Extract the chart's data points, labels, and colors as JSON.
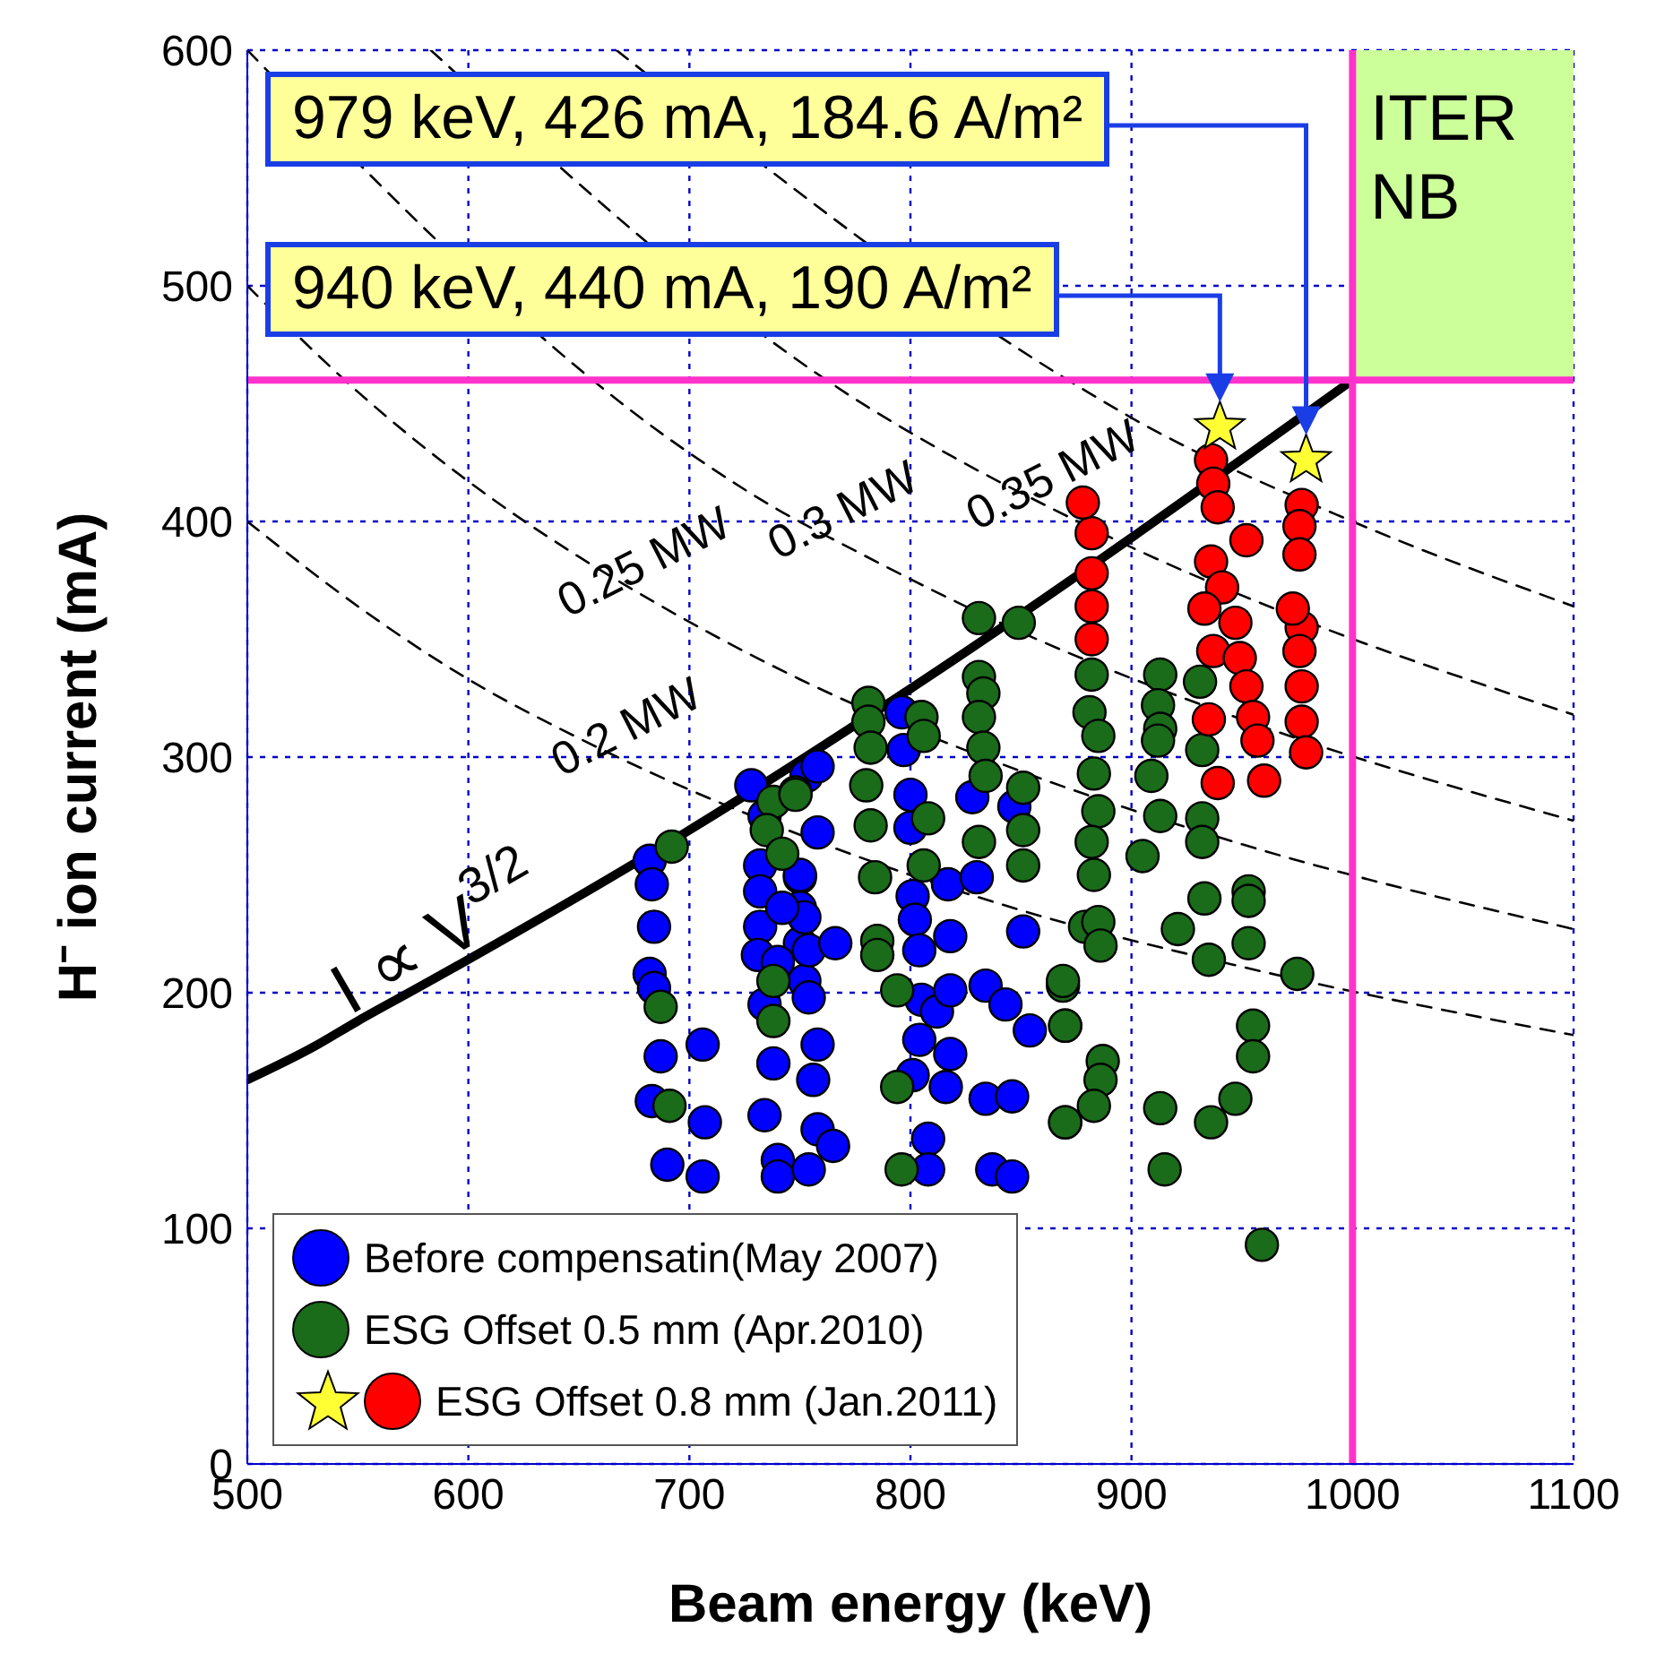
{
  "chart_data": {
    "type": "scatter",
    "xlabel": "Beam energy (keV)",
    "ylabel": "H⁻ ion current (mA)",
    "xlim": [
      500,
      1100
    ],
    "xticks": [
      500,
      600,
      700,
      800,
      900,
      1000,
      1100
    ],
    "ylim": [
      0,
      600
    ],
    "yticks": [
      0,
      100,
      200,
      300,
      400,
      500,
      600
    ],
    "grid": true,
    "legend": "bottom left",
    "series": [
      {
        "name": "Before compensatin(May 2007)",
        "color": "#0000ff",
        "marker": "circle",
        "x": [
          682,
          683,
          684,
          682,
          684,
          687,
          683,
          690,
          706,
          707,
          706,
          728,
          734,
          732,
          732,
          732,
          731,
          734,
          738,
          734,
          740,
          740,
          750,
          750,
          750,
          752,
          753,
          758,
          758,
          750,
          752,
          754,
          766,
          754,
          758,
          756,
          758,
          765,
          754,
          742,
          740,
          796,
          797,
          800,
          800,
          801,
          802,
          804,
          817,
          818,
          830,
          828,
          847,
          805,
          812,
          818,
          804,
          818,
          801,
          816,
          834,
          843,
          854,
          834,
          846,
          851,
          808,
          808,
          837,
          846
        ],
        "values": [
          256,
          246,
          228,
          208,
          202,
          173,
          154,
          127,
          178,
          145,
          122,
          288,
          275,
          254,
          243,
          228,
          216,
          195,
          170,
          148,
          129,
          122,
          249,
          236,
          221,
          205,
          292,
          296,
          268,
          250,
          232,
          218,
          221,
          198,
          178,
          163,
          142,
          135,
          125,
          236,
          213,
          319,
          303,
          284,
          270,
          241,
          231,
          218,
          246,
          224,
          249,
          283,
          279,
          197,
          192,
          201,
          180,
          174,
          165,
          160,
          203,
          195,
          184,
          155,
          156,
          226,
          138,
          125,
          125,
          122
        ]
      },
      {
        "name": "ESG Offset 0.5 mm (Apr.2010)",
        "color": "#1a6b1a",
        "marker": "circle",
        "x": [
          692,
          687,
          691,
          738,
          735,
          738,
          738,
          748,
          748,
          742,
          831,
          849,
          781,
          781,
          782,
          780,
          782,
          784,
          785,
          785,
          794,
          794,
          796,
          805,
          806,
          808,
          806,
          831,
          833,
          831,
          833,
          834,
          831,
          851,
          851,
          851,
          869,
          870,
          870,
          879,
          882,
          881,
          885,
          883,
          885,
          882,
          883,
          885,
          886,
          869,
          870,
          887,
          886,
          883,
          870,
          913,
          912,
          913,
          912,
          909,
          913,
          905,
          931,
          932,
          932,
          932,
          933,
          921,
          935,
          953,
          953,
          953,
          975,
          955,
          955,
          947,
          936,
          913,
          915,
          959
        ],
        "values": [
          262,
          194,
          152,
          281,
          269,
          205,
          188,
          285,
          284,
          259,
          359,
          357,
          323,
          315,
          304,
          288,
          271,
          249,
          222,
          216,
          201,
          160,
          125,
          317,
          309,
          274,
          254,
          334,
          327,
          317,
          304,
          292,
          264,
          287,
          269,
          254,
          203,
          186,
          145,
          228,
          335,
          319,
          309,
          293,
          277,
          264,
          250,
          230,
          220,
          205,
          186,
          171,
          163,
          152,
          145,
          335,
          322,
          312,
          307,
          292,
          275,
          258,
          332,
          303,
          274,
          264,
          240,
          227,
          214,
          243,
          239,
          221,
          208,
          186,
          173,
          155,
          145,
          151,
          125,
          93
        ]
      },
      {
        "name": "ESG Offset 0.8 mm (Jan.2011)",
        "color": "#ff0000",
        "marker": "circle",
        "x": [
          882,
          882,
          882,
          882,
          878,
          936,
          937,
          939,
          952,
          936,
          941,
          933,
          937,
          949,
          952,
          955,
          957,
          935,
          939,
          960,
          947,
          977,
          976,
          976,
          977,
          976,
          977,
          977,
          979,
          973
        ],
        "values": [
          395,
          378,
          364,
          350,
          408,
          426,
          416,
          406,
          392,
          383,
          372,
          363,
          345,
          342,
          330,
          317,
          307,
          316,
          289,
          290,
          357,
          407,
          398,
          386,
          355,
          345,
          330,
          315,
          302,
          363
        ]
      },
      {
        "color": "#ffff33",
        "marker": "star",
        "x": [
          979,
          940
        ],
        "values": [
          426,
          440
        ]
      },
      {
        "type": "line",
        "name": "I ∝ V$^{3/2}$",
        "color": "#000000",
        "line_style": "solid",
        "x": [
          500,
          530,
          550,
          577,
          700,
          800,
          1000
        ],
        "values": [
          163,
          177,
          188,
          202,
          269,
          329,
          460
        ]
      },
      {
        "type": "line",
        "name": "0.2 MW",
        "color": "#000000",
        "line_style": "dashed",
        "x": [
          500,
          550,
          600,
          650,
          672,
          750,
          850,
          950,
          1100
        ],
        "values": [
          400,
          364,
          333,
          308,
          298,
          267,
          235,
          211,
          182
        ]
      },
      {
        "type": "line",
        "name": "0.25 MW",
        "color": "#000000",
        "line_style": "dashed",
        "x": [
          500,
          550,
          600,
          650,
          680,
          750,
          850,
          950,
          1100
        ],
        "values": [
          500,
          455,
          417,
          385,
          368,
          333,
          294,
          263,
          227
        ]
      },
      {
        "type": "line",
        "name": "0.3 MW",
        "color": "#000000",
        "line_style": "dashed",
        "x": [
          500,
          700,
          740,
          770,
          850,
          950,
          1100
        ],
        "values": [
          600,
          429,
          405,
          390,
          353,
          316,
          273
        ]
      },
      {
        "type": "line",
        "name": "0.35 MW",
        "color": "#000000",
        "line_style": "dashed",
        "x": [
          583,
          780,
          820,
          865,
          900,
          970,
          1100
        ],
        "values": [
          600,
          449,
          427,
          405,
          389,
          361,
          318
        ]
      },
      {
        "type": "line",
        "color": "#000000",
        "line_style": "dashed",
        "x": [
          667,
          880,
          900,
          1000,
          1100
        ],
        "values": [
          600,
          455,
          444,
          400,
          364
        ]
      }
    ],
    "ref_lines": [
      {
        "axis": "x",
        "value": 1000,
        "color": "#ff33cc"
      },
      {
        "axis": "y",
        "value": 460,
        "color": "#ff33cc"
      }
    ],
    "bands": [
      {
        "axis": "x",
        "from": 1000,
        "to": 1100,
        "label": "ITER NB",
        "color": "#ccff99"
      }
    ],
    "annotations": [
      "979 keV, 426 mA, 184.6 A/m²",
      "940 keV, 440 mA, 190 A/m²"
    ]
  }
}
